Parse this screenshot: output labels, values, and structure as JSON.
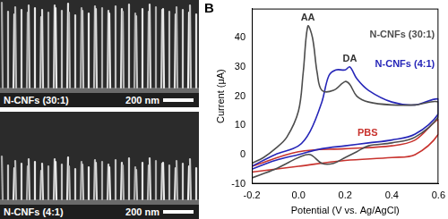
{
  "images": [
    {
      "label": "N-CNFs (30:1)",
      "scale_bar": "200 nm"
    },
    {
      "label": "N-CNFs (4:1)",
      "scale_bar": "200 nm"
    }
  ],
  "chart_data": {
    "type": "line",
    "panel_label": "B",
    "x_label": "Potential (V vs. Ag/AgCl)",
    "y_label": "Current (μA)",
    "xlim": [
      -0.2,
      0.6
    ],
    "xticks": [
      -0.2,
      {
        "value": 0,
        "label": "0.0"
      },
      0.2,
      0.4,
      0.6
    ],
    "ylim": [
      -10,
      50
    ],
    "yticks": [
      -10,
      0,
      10,
      20,
      30,
      40
    ],
    "grid": false,
    "annotations": [
      "AA",
      "DA"
    ],
    "series": [
      {
        "name": "N-CNFs (30:1)",
        "color": "#4d4d4d",
        "x": [
          -0.2,
          -0.15,
          -0.1,
          -0.05,
          0.0,
          0.02,
          0.04,
          0.06,
          0.08,
          0.1,
          0.15,
          0.2,
          0.22,
          0.25,
          0.3,
          0.4,
          0.5,
          0.6,
          0.6,
          0.5,
          0.4,
          0.3,
          0.25,
          0.2,
          0.15,
          0.1,
          0.05,
          0.0,
          -0.05,
          -0.1,
          -0.2
        ],
        "values": [
          -3,
          -1,
          2,
          6,
          15,
          28,
          44,
          40,
          28,
          22,
          22,
          25,
          24,
          20,
          18,
          17,
          17,
          18,
          13,
          6,
          4,
          3,
          1,
          -1,
          -3,
          -3,
          0,
          -1,
          -3,
          -5,
          -8
        ]
      },
      {
        "name": "N-CNFs (4:1)",
        "color": "#2626b8",
        "x": [
          -0.2,
          -0.1,
          0.0,
          0.05,
          0.1,
          0.13,
          0.16,
          0.2,
          0.22,
          0.25,
          0.3,
          0.4,
          0.5,
          0.6,
          0.6,
          0.5,
          0.4,
          0.3,
          0.2,
          0.1,
          0.0,
          -0.1,
          -0.2
        ],
        "values": [
          -4,
          0,
          3,
          8,
          18,
          27,
          29,
          29,
          30,
          26,
          22,
          18,
          17,
          19,
          14,
          7,
          5,
          4,
          3,
          2,
          0,
          -2,
          -5
        ]
      },
      {
        "name": "PBS",
        "color": "#c8322d",
        "x": [
          -0.2,
          0.0,
          0.2,
          0.4,
          0.5,
          0.6,
          0.6,
          0.5,
          0.4,
          0.2,
          0.0,
          -0.2
        ],
        "values": [
          -4,
          1,
          2,
          3,
          5,
          12,
          7,
          0,
          -1,
          -2,
          -4,
          -6
        ]
      }
    ]
  }
}
